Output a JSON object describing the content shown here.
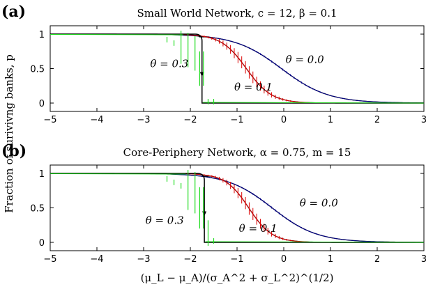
{
  "figure": {
    "ylabel": "Fraction of surivivng banks, p",
    "xlabel": "(μ_L − μ_A)/(σ_A^2 + σ_L^2)^(1/2)"
  },
  "chart_data": [
    {
      "type": "line",
      "panel_label": "(a)",
      "title": "Small World Network, c = 12, β = 0.1",
      "xlim": [
        -5,
        3
      ],
      "ylim": [
        0,
        1
      ],
      "xticks": [
        -5,
        -4,
        -3,
        -2,
        -1,
        0,
        1,
        2,
        3
      ],
      "yticks": [
        0,
        0.5,
        1
      ],
      "ytick_labels": [
        "0",
        "0.5",
        "1"
      ],
      "grid": false,
      "annotations": [
        {
          "text": "θ = 0.0",
          "x": 0.45,
          "y": 0.58
        },
        {
          "text": "θ = 0.3",
          "x": -2.45,
          "y": 0.52
        },
        {
          "text": "θ = 0.1",
          "x": -0.65,
          "y": 0.18
        }
      ],
      "series": [
        {
          "theta": "0.0",
          "kind": "analytic",
          "color": "#000000",
          "mid": -0.05,
          "scale": 0.5,
          "sharp": false
        },
        {
          "theta": "0.0",
          "kind": "simulation",
          "color": "#00008b",
          "mid": -0.05,
          "scale": 0.5,
          "sharp": false,
          "err": 0.015
        },
        {
          "theta": "0.1",
          "kind": "analytic",
          "color": "#000000",
          "mid": -0.8,
          "scale": 0.27,
          "sharp": true,
          "cut": -1.8,
          "jump": 0.96
        },
        {
          "theta": "0.1",
          "kind": "simulation",
          "color": "#dd0000",
          "mid": -0.8,
          "scale": 0.27,
          "sharp": false,
          "err": 0.09
        },
        {
          "theta": "0.3",
          "kind": "analytic",
          "color": "#000000",
          "cut": -1.75,
          "jump": 0.96
        },
        {
          "theta": "0.3",
          "kind": "simulation",
          "color": "#22dd22",
          "cut": -1.75,
          "err": 0.25
        }
      ]
    },
    {
      "type": "line",
      "panel_label": "(b)",
      "title": "Core-Periphery Network, α = 0.75, m = 15",
      "xlim": [
        -5,
        3
      ],
      "ylim": [
        0,
        1
      ],
      "xticks": [
        -5,
        -4,
        -3,
        -2,
        -1,
        0,
        1,
        2,
        3
      ],
      "yticks": [
        0,
        0.5,
        1
      ],
      "ytick_labels": [
        "0",
        "0.5",
        "1"
      ],
      "grid": false,
      "annotations": [
        {
          "text": "θ = 0.0",
          "x": 0.75,
          "y": 0.52
        },
        {
          "text": "θ = 0.3",
          "x": -2.55,
          "y": 0.27
        },
        {
          "text": "θ = 0.1",
          "x": -0.55,
          "y": 0.15
        }
      ],
      "series": [
        {
          "theta": "0.0",
          "kind": "analytic",
          "color": "#000000",
          "mid": -0.25,
          "scale": 0.48,
          "sharp": false
        },
        {
          "theta": "0.0",
          "kind": "simulation",
          "color": "#00008b",
          "mid": -0.25,
          "scale": 0.48,
          "sharp": false,
          "err": 0.015
        },
        {
          "theta": "0.1",
          "kind": "analytic",
          "color": "#000000",
          "mid": -0.75,
          "scale": 0.25,
          "sharp": true,
          "cut": -1.75,
          "jump": 0.96
        },
        {
          "theta": "0.1",
          "kind": "simulation",
          "color": "#dd0000",
          "mid": -0.75,
          "scale": 0.25,
          "sharp": false,
          "err": 0.09
        },
        {
          "theta": "0.3",
          "kind": "analytic",
          "color": "#000000",
          "cut": -1.7,
          "jump": 0.96
        },
        {
          "theta": "0.3",
          "kind": "simulation",
          "color": "#22dd22",
          "cut": -1.7,
          "err": 0.3
        }
      ]
    }
  ]
}
